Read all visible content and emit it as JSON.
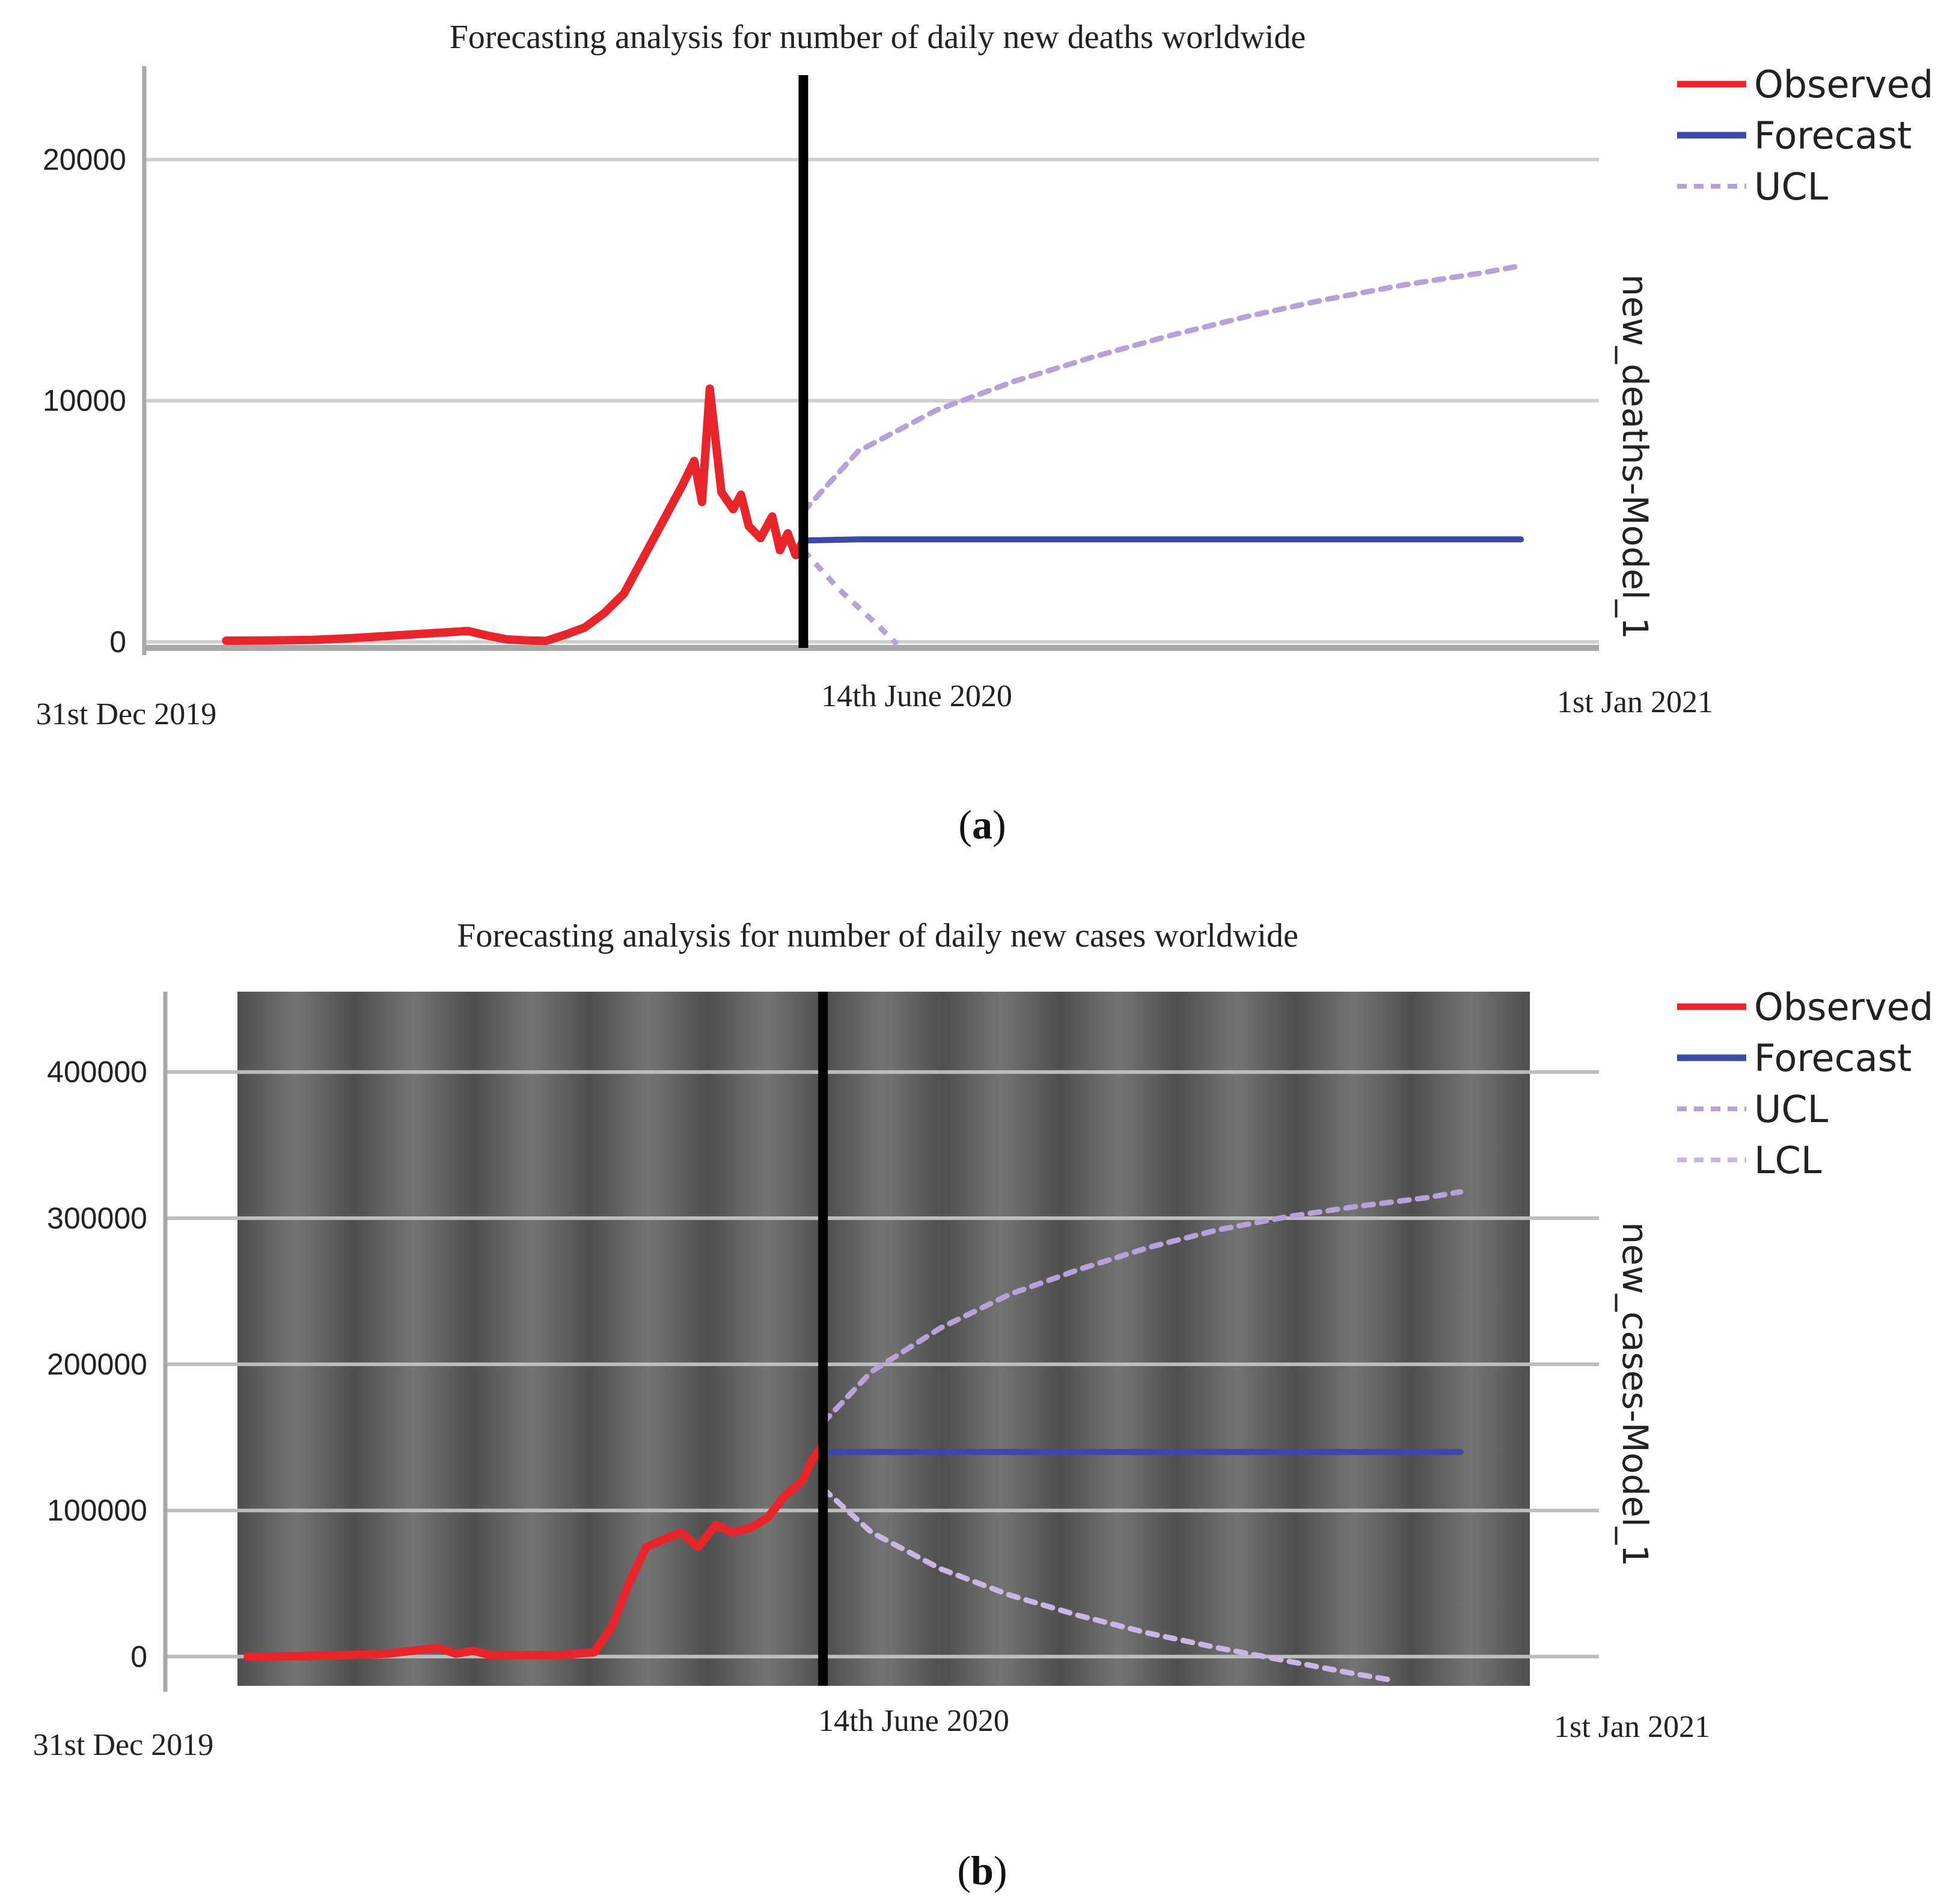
{
  "colors": {
    "observed": "#e8252b",
    "forecast": "#3a4aa8",
    "ucl": "#b7a1d8",
    "lcl": "#c9b6e2",
    "grid_light": "#cfcfcf",
    "grid_dark": "#bdbdbd",
    "axis": "#a8a8a8",
    "vline": "#000000",
    "panel_b_dark": "#4f4f4f",
    "panel_b_light": "#7a7a7a"
  },
  "chart_data": [
    {
      "panel": "a",
      "caption": "a",
      "type": "line",
      "title": "Forecasting analysis for number of daily new deaths worldwide",
      "ylabel_right": "new_deaths-Model_1",
      "ylim": [
        -300,
        23500
      ],
      "yticks": [
        {
          "value": 0,
          "label": "0"
        },
        {
          "value": 10000,
          "label": "10000"
        },
        {
          "value": 20000,
          "label": "20000"
        }
      ],
      "x_domain_days": [
        -3,
        370
      ],
      "xticks": [
        {
          "day": 0,
          "label": "31st Dec 2019"
        },
        {
          "day": 166,
          "label": "14th June 2020"
        },
        {
          "day": 367,
          "label": "1st Jan 2021"
        }
      ],
      "forecast_origin_day": 166,
      "legend": [
        "Observed",
        "Forecast",
        "UCL"
      ],
      "legend_position": "top-right",
      "series": [
        {
          "name": "Observed",
          "x": [
            18,
            30,
            40,
            50,
            60,
            70,
            80,
            85,
            90,
            95,
            100,
            105,
            110,
            115,
            120,
            125,
            130,
            135,
            138,
            140,
            142,
            145,
            148,
            150,
            152,
            155,
            158,
            160,
            162,
            164,
            166
          ],
          "values": [
            50,
            60,
            80,
            150,
            250,
            350,
            450,
            260,
            100,
            60,
            40,
            300,
            600,
            1200,
            2000,
            3500,
            5000,
            6500,
            7500,
            5800,
            10500,
            6200,
            5500,
            6100,
            4800,
            4300,
            5200,
            3800,
            4500,
            3600,
            4200
          ]
        },
        {
          "name": "Forecast",
          "x": [
            166,
            180,
            200,
            250,
            300,
            350
          ],
          "values": [
            4200,
            4250,
            4250,
            4250,
            4250,
            4250
          ]
        },
        {
          "name": "UCL",
          "x": [
            166,
            180,
            200,
            220,
            240,
            260,
            280,
            300,
            320,
            340,
            350
          ],
          "values": [
            5400,
            7900,
            9600,
            10800,
            11800,
            12700,
            13500,
            14200,
            14800,
            15300,
            15600
          ]
        }
      ],
      "lcl_visible_segment": {
        "x": [
          166,
          175,
          185,
          190
        ],
        "values": [
          3800,
          2200,
          700,
          -100
        ]
      }
    },
    {
      "panel": "b",
      "caption": "b",
      "type": "line",
      "title": "Forecasting analysis for number of daily new cases worldwide",
      "ylabel_right": "new_cases-Model_1",
      "ylim": [
        -20000,
        455000
      ],
      "yticks": [
        {
          "value": 0,
          "label": "0"
        },
        {
          "value": 100000,
          "label": "100000"
        },
        {
          "value": 200000,
          "label": "200000"
        },
        {
          "value": 300000,
          "label": "300000"
        },
        {
          "value": 400000,
          "label": "400000"
        }
      ],
      "x_domain_days": [
        -3,
        370
      ],
      "xticks": [
        {
          "day": 0,
          "label": "31st Dec 2019"
        },
        {
          "day": 166,
          "label": "14th June 2020"
        },
        {
          "day": 367,
          "label": "1st Jan 2021"
        }
      ],
      "forecast_origin_day": 166,
      "legend": [
        "Observed",
        "Forecast",
        "UCL",
        "LCL"
      ],
      "legend_position": "top-right",
      "series": [
        {
          "name": "Observed",
          "x": [
            0,
            20,
            40,
            55,
            60,
            65,
            70,
            75,
            80,
            90,
            100,
            105,
            110,
            115,
            120,
            125,
            130,
            135,
            140,
            145,
            150,
            155,
            160,
            163,
            166
          ],
          "values": [
            0,
            500,
            2000,
            6000,
            2000,
            4000,
            1000,
            1000,
            1000,
            1000,
            3000,
            20000,
            50000,
            75000,
            80000,
            85000,
            75000,
            90000,
            85000,
            88000,
            95000,
            110000,
            120000,
            135000,
            145000
          ]
        },
        {
          "name": "Forecast",
          "x": [
            166,
            200,
            250,
            300,
            350
          ],
          "values": [
            140000,
            140000,
            140000,
            140000,
            140000
          ]
        },
        {
          "name": "UCL",
          "x": [
            166,
            180,
            200,
            220,
            240,
            260,
            280,
            300,
            320,
            340,
            350
          ],
          "values": [
            160000,
            195000,
            225000,
            248000,
            265000,
            280000,
            292000,
            301000,
            308000,
            314000,
            318000
          ]
        },
        {
          "name": "LCL",
          "x": [
            166,
            180,
            200,
            220,
            240,
            260,
            280,
            300,
            320,
            330
          ],
          "values": [
            115000,
            85000,
            60000,
            42000,
            28000,
            16000,
            6000,
            -3000,
            -12000,
            -16000
          ]
        }
      ]
    }
  ]
}
